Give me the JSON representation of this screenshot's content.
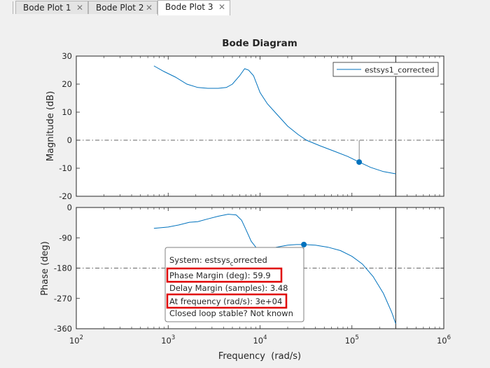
{
  "tabs": [
    {
      "label": "Bode Plot 1",
      "active": false
    },
    {
      "label": "Bode Plot 2",
      "active": false
    },
    {
      "label": "Bode Plot 3",
      "active": true
    }
  ],
  "close_glyph": "✕",
  "chart_data": {
    "type": "line",
    "title": "Bode Diagram",
    "xlabel": "Frequency  (rad/s)",
    "x_scale": "log",
    "xlim": [
      100,
      1000000
    ],
    "x_ticks": [
      {
        "value": 100,
        "base": "10",
        "exp": "2"
      },
      {
        "value": 1000,
        "base": "10",
        "exp": "3"
      },
      {
        "value": 10000,
        "base": "10",
        "exp": "4"
      },
      {
        "value": 100000,
        "base": "10",
        "exp": "5"
      },
      {
        "value": 1000000,
        "base": "10",
        "exp": "6"
      }
    ],
    "grid": false,
    "line_color": "#0072bd",
    "legend": {
      "label": "estsys1_corrected",
      "placement": "top-right"
    },
    "magnitude": {
      "ylabel": "Magnitude (dB)",
      "ylim": [
        -20,
        30
      ],
      "yticks": [
        30,
        20,
        10,
        0,
        -10,
        -20
      ],
      "reference_line": 0,
      "x": [
        700,
        900,
        1200,
        1600,
        2100,
        2700,
        3500,
        4300,
        5000,
        6000,
        6800,
        7500,
        8500,
        10000,
        12000,
        15000,
        20000,
        26000,
        32000,
        45000,
        65000,
        90000,
        120000,
        160000,
        220000,
        300000
      ],
      "y": [
        26.5,
        24.5,
        22.5,
        20,
        18.8,
        18.5,
        18.5,
        18.8,
        20,
        23,
        25.5,
        25,
        23,
        17,
        13,
        9.5,
        5,
        2,
        0,
        -2,
        -4,
        -5.8,
        -7.8,
        -9.7,
        -11.2,
        -12
      ],
      "marker": {
        "x": 120000,
        "y": -7.8
      }
    },
    "phase": {
      "ylabel": "Phase (deg)",
      "ylim": [
        -360,
        0
      ],
      "yticks": [
        0,
        -90,
        -180,
        -270,
        -360
      ],
      "reference_line": -180,
      "x": [
        700,
        1000,
        1300,
        1700,
        2100,
        2700,
        3500,
        4500,
        5500,
        6300,
        7000,
        8000,
        9000,
        10000,
        12000,
        15000,
        20000,
        25000,
        30000,
        40000,
        55000,
        75000,
        100000,
        130000,
        170000,
        220000,
        270000,
        300000
      ],
      "y": [
        -62,
        -58,
        -52,
        -44,
        -42,
        -34,
        -26,
        -20,
        -22,
        -38,
        -65,
        -100,
        -118,
        -128,
        -125,
        -118,
        -112,
        -110,
        -110,
        -112,
        -118,
        -128,
        -145,
        -168,
        -205,
        -255,
        -310,
        -345
      ],
      "marker": {
        "x": 30000,
        "y": -110
      }
    },
    "vertical_line_x": 300000
  },
  "datatip": {
    "system_prefix": "System: estsys",
    "system_sub": "c",
    "system_suffix": "orrected",
    "phase_margin": "Phase Margin (deg): 59.9",
    "delay_margin": "Delay Margin (samples): 3.48",
    "at_frequency": "At frequency (rad/s): 3e+04",
    "closed_loop": "Closed loop stable? Not known"
  }
}
